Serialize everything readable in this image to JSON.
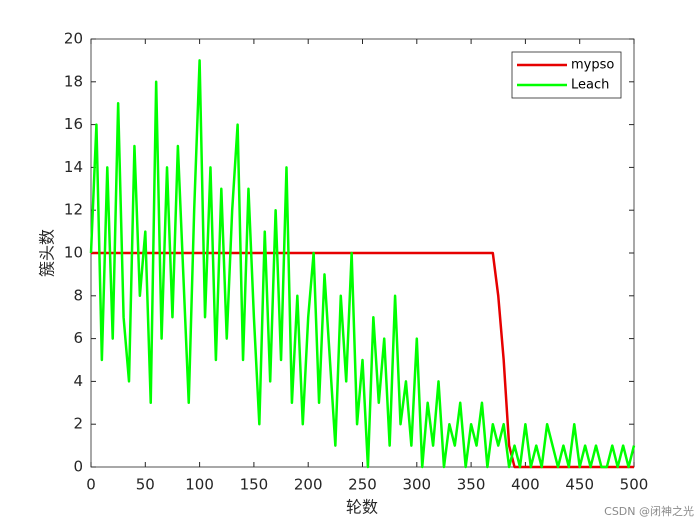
{
  "chart_data": {
    "type": "line",
    "xlabel": "轮数",
    "ylabel": "簇头数",
    "watermark": "CSDN @闭神之光",
    "x": [
      0,
      5,
      10,
      15,
      20,
      25,
      30,
      35,
      40,
      45,
      50,
      55,
      60,
      65,
      70,
      75,
      80,
      85,
      90,
      95,
      100,
      105,
      110,
      115,
      120,
      125,
      130,
      135,
      140,
      145,
      150,
      155,
      160,
      165,
      170,
      175,
      180,
      185,
      190,
      195,
      200,
      205,
      210,
      215,
      220,
      225,
      230,
      235,
      240,
      245,
      250,
      255,
      260,
      265,
      270,
      275,
      280,
      285,
      290,
      295,
      300,
      305,
      310,
      315,
      320,
      325,
      330,
      335,
      340,
      345,
      350,
      355,
      360,
      365,
      370,
      375,
      380,
      385,
      390,
      395,
      400,
      405,
      410,
      415,
      420,
      425,
      430,
      435,
      440,
      445,
      450,
      455,
      460,
      465,
      470,
      475,
      480,
      485,
      490,
      495,
      500
    ],
    "series": [
      {
        "name": "mypso",
        "color": "#e60000",
        "values": [
          10,
          10,
          10,
          10,
          10,
          10,
          10,
          10,
          10,
          10,
          10,
          10,
          10,
          10,
          10,
          10,
          10,
          10,
          10,
          10,
          10,
          10,
          10,
          10,
          10,
          10,
          10,
          10,
          10,
          10,
          10,
          10,
          10,
          10,
          10,
          10,
          10,
          10,
          10,
          10,
          10,
          10,
          10,
          10,
          10,
          10,
          10,
          10,
          10,
          10,
          10,
          10,
          10,
          10,
          10,
          10,
          10,
          10,
          10,
          10,
          10,
          10,
          10,
          10,
          10,
          10,
          10,
          10,
          10,
          10,
          10,
          10,
          10,
          10,
          10,
          8,
          5,
          1,
          0,
          0,
          0,
          0,
          0,
          0,
          0,
          0,
          0,
          0,
          0,
          0,
          0,
          0,
          0,
          0,
          0,
          0,
          0,
          0,
          0,
          0,
          0
        ]
      },
      {
        "name": "Leach",
        "color": "#00ff00",
        "values": [
          10,
          16,
          5,
          14,
          6,
          17,
          7,
          4,
          15,
          8,
          11,
          3,
          18,
          6,
          14,
          7,
          15,
          9,
          3,
          12,
          19,
          7,
          14,
          5,
          13,
          6,
          12,
          16,
          5,
          13,
          7,
          2,
          11,
          4,
          12,
          5,
          14,
          3,
          8,
          2,
          7,
          10,
          3,
          9,
          5,
          1,
          8,
          4,
          10,
          2,
          5,
          0,
          7,
          3,
          6,
          1,
          8,
          2,
          4,
          1,
          6,
          0,
          3,
          1,
          4,
          0,
          2,
          1,
          3,
          0,
          2,
          1,
          3,
          0,
          2,
          1,
          2,
          0,
          1,
          0,
          2,
          0,
          1,
          0,
          2,
          1,
          0,
          1,
          0,
          2,
          0,
          1,
          0,
          1,
          0,
          0,
          1,
          0,
          1,
          0,
          1
        ]
      }
    ],
    "xlim": [
      0,
      500
    ],
    "xticks": [
      0,
      50,
      100,
      150,
      200,
      250,
      300,
      350,
      400,
      450,
      500
    ],
    "ylim": [
      0,
      20
    ],
    "yticks": [
      0,
      2,
      4,
      6,
      8,
      10,
      12,
      14,
      16,
      18,
      20
    ],
    "legend": "northeast"
  }
}
